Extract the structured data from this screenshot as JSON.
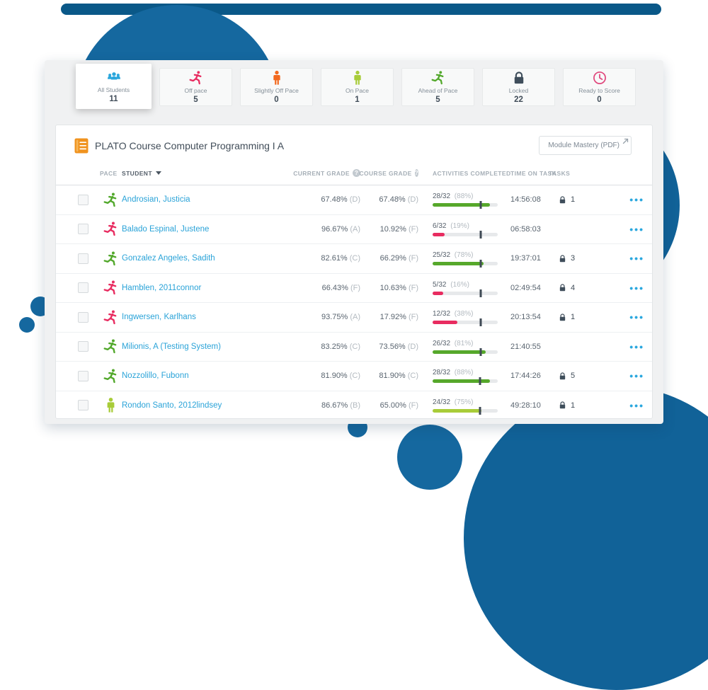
{
  "brand": {
    "accent_blue": "#2aa7de",
    "circle_blue": "#15689f",
    "band_blue": "#0a5888"
  },
  "filter_cards": [
    {
      "label": "All Students",
      "count": "11",
      "icon": "students-group-icon",
      "icon_color": "#2aa6dc",
      "active": true
    },
    {
      "label": "Off pace",
      "count": "5",
      "icon": "runner-icon",
      "icon_color": "#e82c60",
      "active": false
    },
    {
      "label": "Slightly Off Pace",
      "count": "0",
      "icon": "standing-person-icon",
      "icon_color": "#f2691f",
      "active": false
    },
    {
      "label": "On Pace",
      "count": "1",
      "icon": "standing-person-icon",
      "icon_color": "#a8cc39",
      "active": false
    },
    {
      "label": "Ahead of Pace",
      "count": "5",
      "icon": "runner-icon",
      "icon_color": "#52a82b",
      "active": false
    },
    {
      "label": "Locked",
      "count": "22",
      "icon": "lock-icon",
      "icon_color": "#3f4e5b",
      "active": false
    },
    {
      "label": "Ready to Score",
      "count": "0",
      "icon": "clock-icon",
      "icon_color": "#e0487d",
      "active": false
    }
  ],
  "panel": {
    "course_title": "PLATO Course Computer Programming I A",
    "module_mastery_button": "Module Mastery (PDF)",
    "columns": {
      "pace": "PACE",
      "student": "STUDENT",
      "current_grade": "CURRENT GRADE",
      "course_grade": "COURSE GRADE",
      "activities": "ACTIVITIES COMPLETED",
      "time_on_task": "TIME ON TASK",
      "tasks": "TASKS"
    },
    "pace_colors": {
      "ahead-of-pace": "#52a82b",
      "off-pace": "#e82c60",
      "on-pace": "#a8cc39"
    },
    "rows": [
      {
        "student": "Androsian, Justicia",
        "pace": "ahead-of-pace",
        "current_grade": "67.48%",
        "current_letter": "(D)",
        "course_grade": "67.48%",
        "course_letter": "(D)",
        "activities_fraction": "28/32",
        "activities_percent": "(88%)",
        "progress_pct": 88,
        "pace_marker_pct": 74,
        "bar_color": "#56a82b",
        "time_on_task": "14:56:08",
        "locked_tasks": "1"
      },
      {
        "student": "Balado Espinal, Justene",
        "pace": "off-pace",
        "current_grade": "96.67%",
        "current_letter": "(A)",
        "course_grade": "10.92%",
        "course_letter": "(F)",
        "activities_fraction": "6/32",
        "activities_percent": "(19%)",
        "progress_pct": 19,
        "pace_marker_pct": 74,
        "bar_color": "#e82c60",
        "time_on_task": "06:58:03",
        "locked_tasks": null
      },
      {
        "student": "Gonzalez Angeles, Sadith",
        "pace": "ahead-of-pace",
        "current_grade": "82.61%",
        "current_letter": "(C)",
        "course_grade": "66.29%",
        "course_letter": "(F)",
        "activities_fraction": "25/32",
        "activities_percent": "(78%)",
        "progress_pct": 78,
        "pace_marker_pct": 74,
        "bar_color": "#56a82b",
        "time_on_task": "19:37:01",
        "locked_tasks": "3"
      },
      {
        "student": "Hamblen, 2011connor",
        "pace": "off-pace",
        "current_grade": "66.43%",
        "current_letter": "(F)",
        "course_grade": "10.63%",
        "course_letter": "(F)",
        "activities_fraction": "5/32",
        "activities_percent": "(16%)",
        "progress_pct": 16,
        "pace_marker_pct": 74,
        "bar_color": "#e82c60",
        "time_on_task": "02:49:54",
        "locked_tasks": "4"
      },
      {
        "student": "Ingwersen, Karlhans",
        "pace": "off-pace",
        "current_grade": "93.75%",
        "current_letter": "(A)",
        "course_grade": "17.92%",
        "course_letter": "(F)",
        "activities_fraction": "12/32",
        "activities_percent": "(38%)",
        "progress_pct": 38,
        "pace_marker_pct": 74,
        "bar_color": "#e82c60",
        "time_on_task": "20:13:54",
        "locked_tasks": "1"
      },
      {
        "student": "Milionis, A (Testing System)",
        "pace": "ahead-of-pace",
        "current_grade": "83.25%",
        "current_letter": "(C)",
        "course_grade": "73.56%",
        "course_letter": "(D)",
        "activities_fraction": "26/32",
        "activities_percent": "(81%)",
        "progress_pct": 81,
        "pace_marker_pct": 74,
        "bar_color": "#56a82b",
        "time_on_task": "21:40:55",
        "locked_tasks": null
      },
      {
        "student": "Nozzolillo, Fubonn",
        "pace": "ahead-of-pace",
        "current_grade": "81.90%",
        "current_letter": "(C)",
        "course_grade": "81.90%",
        "course_letter": "(C)",
        "activities_fraction": "28/32",
        "activities_percent": "(88%)",
        "progress_pct": 88,
        "pace_marker_pct": 73,
        "bar_color": "#56a82b",
        "time_on_task": "17:44:26",
        "locked_tasks": "5"
      },
      {
        "student": "Rondon Santo, 2012lindsey",
        "pace": "on-pace",
        "current_grade": "86.67%",
        "current_letter": "(B)",
        "course_grade": "65.00%",
        "course_letter": "(F)",
        "activities_fraction": "24/32",
        "activities_percent": "(75%)",
        "progress_pct": 75,
        "pace_marker_pct": 73,
        "bar_color": "#a8cc39",
        "time_on_task": "49:28:10",
        "locked_tasks": "1"
      }
    ]
  }
}
